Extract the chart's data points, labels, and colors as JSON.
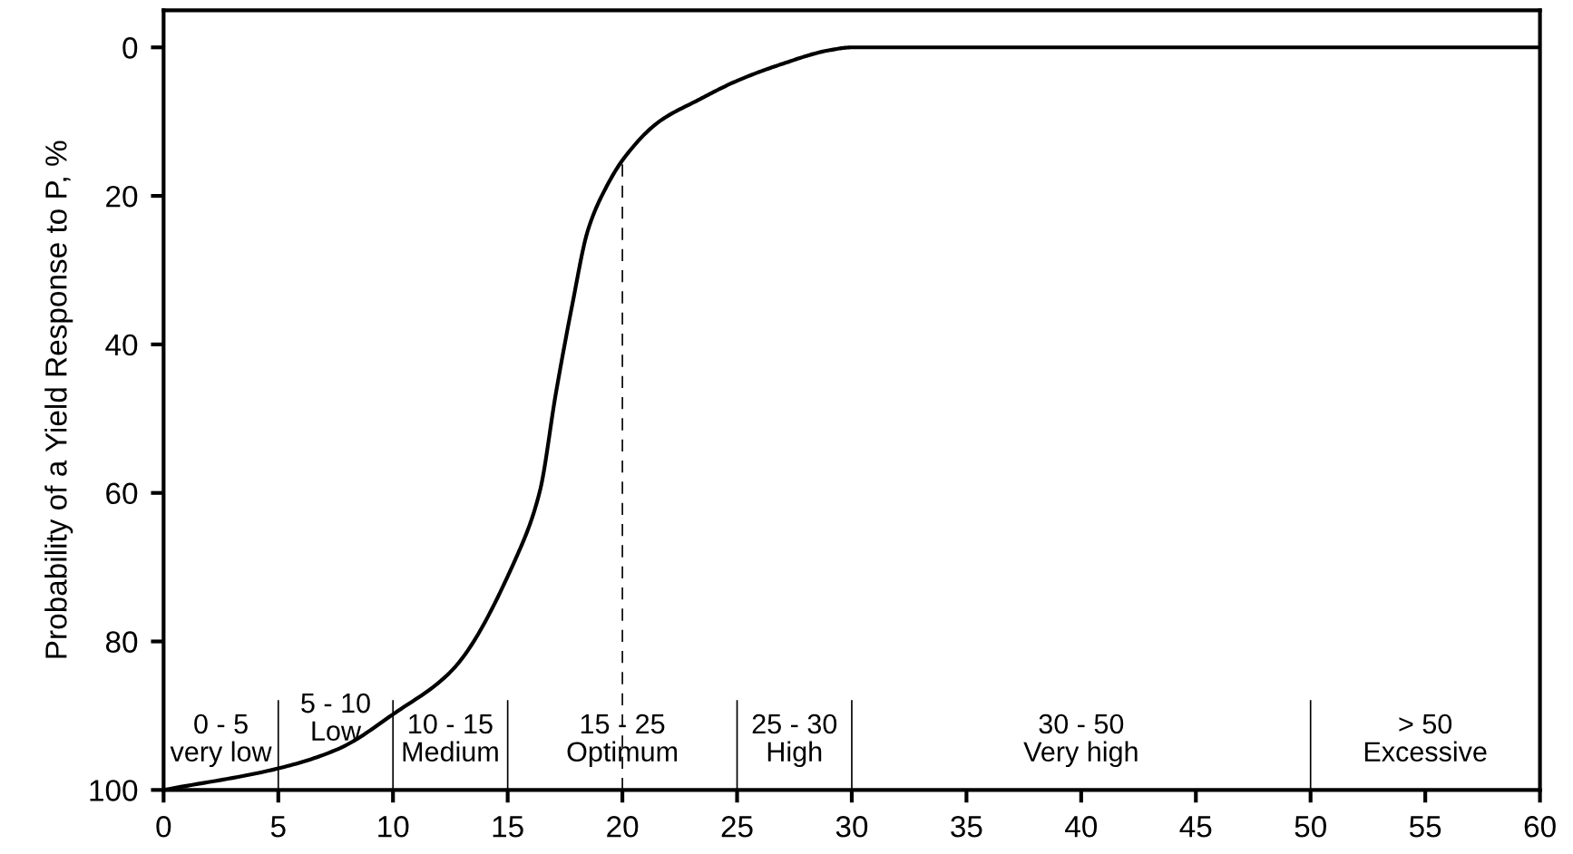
{
  "chart_data": {
    "type": "line",
    "ylabel": "Probability of a Yield Response to P, %",
    "x": [
      0,
      5,
      7.6,
      10.1,
      12.6,
      15.4,
      16.4,
      17.1,
      17.8,
      18.5,
      19.3,
      20.1,
      21.6,
      23.3,
      25,
      26.9,
      29,
      30,
      60
    ],
    "series": [
      {
        "color": "#000000",
        "values": [
          100,
          97.1,
          94.5,
          89.6,
          83.8,
          68.5,
          59.8,
          46.6,
          34.9,
          24.6,
          18.8,
          14.8,
          10.0,
          7.1,
          4.5,
          2.3,
          0.4,
          0,
          0
        ]
      }
    ],
    "xlim": [
      0,
      60
    ],
    "xticks": [
      0,
      5,
      10,
      15,
      20,
      25,
      30,
      35,
      40,
      45,
      50,
      55,
      60
    ],
    "ylim": [
      100,
      -5
    ],
    "yticks": [
      0,
      20,
      40,
      60,
      80,
      100
    ],
    "grid": false,
    "legend": false,
    "marker": "none",
    "line_style": "solid",
    "ref_lines": [
      {
        "axis": "x",
        "value": 20,
        "line_style": "dashed",
        "color": "#000000"
      },
      {
        "axis": "x",
        "value": 5,
        "line_style": "solid",
        "color": "#000000"
      },
      {
        "axis": "x",
        "value": 10,
        "line_style": "solid",
        "color": "#000000"
      },
      {
        "axis": "x",
        "value": 15,
        "line_style": "solid",
        "color": "#000000"
      },
      {
        "axis": "x",
        "value": 25,
        "line_style": "solid",
        "color": "#000000"
      },
      {
        "axis": "x",
        "value": 30,
        "line_style": "solid",
        "color": "#000000"
      },
      {
        "axis": "x",
        "value": 50,
        "line_style": "solid",
        "color": "#000000"
      }
    ],
    "annotations": [
      "0 - 5\nvery low",
      "5 - 10\nLow",
      "10 - 15\nMedium",
      "15 - 25\nOptimum",
      "25 - 30\nHigh",
      "30 - 50\nVery high",
      "> 50\nExcessive"
    ]
  }
}
